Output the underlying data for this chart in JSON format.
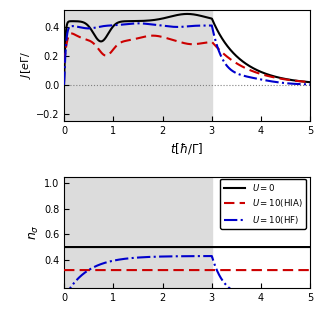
{
  "top_panel": {
    "xlim": [
      0,
      5
    ],
    "ylim": [
      -0.25,
      0.52
    ],
    "yticks": [
      -0.2,
      0.0,
      0.2,
      0.4
    ],
    "gray_region": [
      0,
      3
    ],
    "bg_color": "#dcdcdc"
  },
  "bottom_panel": {
    "xlim": [
      0,
      5
    ],
    "ylim": [
      0.18,
      1.05
    ],
    "yticks": [
      0.4,
      0.6,
      0.8,
      1.0
    ],
    "gray_region": [
      0,
      3
    ],
    "bg_color": "#dcdcdc"
  },
  "colors": {
    "U0": "#000000",
    "U10_HIA": "#cc0000",
    "U10_HF": "#0000cc"
  },
  "legend": {
    "U0_label": "$U = 0$",
    "U10_HIA_label": "$U = 10$(HIA)",
    "U10_HF_label": "$U = 10$(HF)"
  },
  "lw": 1.5
}
